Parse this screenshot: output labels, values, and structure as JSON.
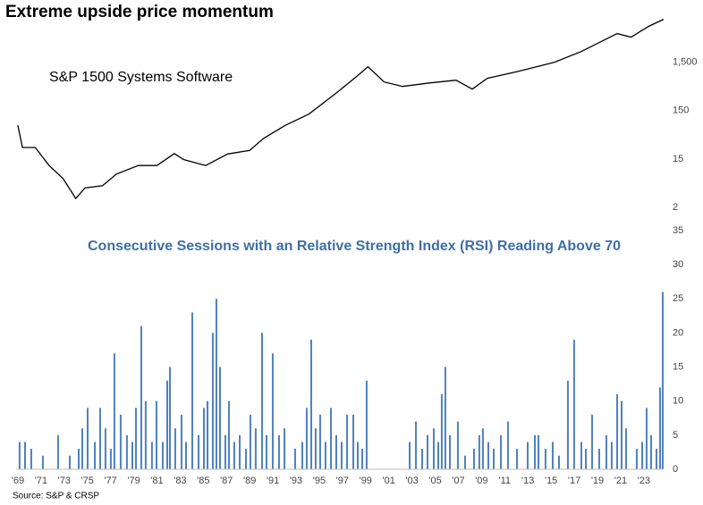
{
  "chart_data": [
    {
      "type": "line",
      "title": "Extreme upside price momentum",
      "annotation": "S&P 1500 Systems Software",
      "color": "#000000",
      "log_scale": true,
      "x": [
        1969.0,
        1969.4,
        1970.5,
        1971.7,
        1972.9,
        1974.0,
        1974.8,
        1976.3,
        1977.5,
        1979.4,
        1981.0,
        1982.5,
        1983.3,
        1985.2,
        1987.1,
        1989.0,
        1990.2,
        1992.1,
        1994.1,
        1996.4,
        1998.3,
        1999.2,
        2000.6,
        2002.2,
        2004.5,
        2006.8,
        2008.2,
        2009.5,
        2012.2,
        2015.3,
        2017.6,
        2020.7,
        2021.9,
        2023.4,
        2024.7
      ],
      "values": [
        75,
        26,
        26,
        11,
        5.9,
        2.3,
        3.8,
        4.2,
        7.3,
        11,
        11,
        19.4,
        14.6,
        11,
        19,
        22.5,
        40,
        75,
        127,
        336,
        790,
        1215,
        587,
        474,
        560,
        640,
        417,
        700,
        975,
        1500,
        2490,
        5850,
        4970,
        8250,
        11600
      ],
      "xlim": [
        1968.85,
        2024.71
      ],
      "ylim": [
        1.5,
        16000
      ],
      "yticks": [
        {
          "value": 1.5,
          "label": "2"
        },
        15,
        150,
        {
          "value": 1500,
          "label": "1,500"
        }
      ]
    },
    {
      "type": "bar",
      "title": "Consecutive Sessions with an Relative Strength Index (RSI) Reading Above 70",
      "source": "Source: S&P & CRSP",
      "color": "#4f81bd",
      "x": [
        1969.15,
        1969.62,
        1970.16,
        1971.16,
        1972.47,
        1973.48,
        1974.25,
        1974.56,
        1975.02,
        1975.64,
        1976.1,
        1976.56,
        1977.02,
        1977.33,
        1977.87,
        1978.41,
        1978.88,
        1979.19,
        1979.65,
        1980.03,
        1980.57,
        1980.96,
        1981.5,
        1981.89,
        1982.12,
        1982.58,
        1983.12,
        1983.51,
        1984.05,
        1984.59,
        1985.05,
        1985.36,
        1985.82,
        1986.13,
        1986.44,
        1986.9,
        1987.21,
        1987.67,
        1988.14,
        1988.68,
        1989.06,
        1989.52,
        1990.07,
        1990.45,
        1990.99,
        1991.53,
        1992.0,
        1992.92,
        1993.54,
        1993.92,
        1994.31,
        1994.69,
        1995.08,
        1995.54,
        1996.01,
        1996.47,
        1996.93,
        1997.4,
        1997.94,
        1998.32,
        1998.71,
        1999.09,
        2002.8,
        2003.34,
        2003.88,
        2004.34,
        2004.88,
        2005.27,
        2005.57,
        2005.88,
        2006.27,
        2006.96,
        2007.58,
        2008.35,
        2008.81,
        2009.12,
        2009.59,
        2010.05,
        2010.67,
        2011.28,
        2012.06,
        2012.98,
        2013.6,
        2013.91,
        2014.52,
        2015.14,
        2015.68,
        2016.45,
        2016.99,
        2017.61,
        2018.0,
        2018.54,
        2019.15,
        2019.77,
        2020.23,
        2020.7,
        2021.08,
        2021.47,
        2022.39,
        2022.86,
        2023.24,
        2023.63,
        2024.09,
        2024.4,
        2024.63
      ],
      "values": [
        4,
        4,
        3,
        2,
        5,
        2,
        3,
        6,
        9,
        4,
        9,
        6,
        3,
        17,
        8,
        5,
        4,
        9,
        21,
        10,
        4,
        10,
        4,
        13,
        15,
        6,
        8,
        4,
        23,
        5,
        9,
        10,
        20,
        25,
        15,
        5,
        10,
        4,
        5,
        3,
        8,
        6,
        20,
        5,
        17,
        5,
        6,
        3,
        4,
        9,
        19,
        6,
        8,
        4,
        9,
        5,
        4,
        8,
        8,
        4,
        3,
        13,
        4,
        7,
        3,
        5,
        6,
        4,
        11,
        15,
        5,
        7,
        2,
        3,
        5,
        6,
        4,
        3,
        5,
        7,
        3,
        4,
        5,
        5,
        3,
        4,
        2,
        13,
        19,
        4,
        3,
        8,
        3,
        5,
        4,
        11,
        10,
        6,
        3,
        4,
        9,
        5,
        3,
        12,
        26
      ],
      "xlim": [
        1968.85,
        2024.71
      ],
      "ylim": [
        0,
        35
      ],
      "yticks": [
        0,
        5,
        10,
        15,
        20,
        25,
        30,
        35
      ],
      "xticks": [
        {
          "value": 1969,
          "label": "'69"
        },
        {
          "value": 1971,
          "label": "'71"
        },
        {
          "value": 1973,
          "label": "'73"
        },
        {
          "value": 1975,
          "label": "'75"
        },
        {
          "value": 1977,
          "label": "'77"
        },
        {
          "value": 1979,
          "label": "'79"
        },
        {
          "value": 1981,
          "label": "'81"
        },
        {
          "value": 1983,
          "label": "'83"
        },
        {
          "value": 1985,
          "label": "'85"
        },
        {
          "value": 1987,
          "label": "'87"
        },
        {
          "value": 1989,
          "label": "'89"
        },
        {
          "value": 1991,
          "label": "'91"
        },
        {
          "value": 1993,
          "label": "'93"
        },
        {
          "value": 1995,
          "label": "'95"
        },
        {
          "value": 1997,
          "label": "'97"
        },
        {
          "value": 1999,
          "label": "'99"
        },
        {
          "value": 2001,
          "label": "'01"
        },
        {
          "value": 2003,
          "label": "'03"
        },
        {
          "value": 2005,
          "label": "'05"
        },
        {
          "value": 2007,
          "label": "'07"
        },
        {
          "value": 2009,
          "label": "'09"
        },
        {
          "value": 2011,
          "label": "'11"
        },
        {
          "value": 2013,
          "label": "'13"
        },
        {
          "value": 2015,
          "label": "'15"
        },
        {
          "value": 2017,
          "label": "'17"
        },
        {
          "value": 2019,
          "label": "'19"
        },
        {
          "value": 2021,
          "label": "'21"
        },
        {
          "value": 2023,
          "label": "'23"
        }
      ]
    }
  ]
}
